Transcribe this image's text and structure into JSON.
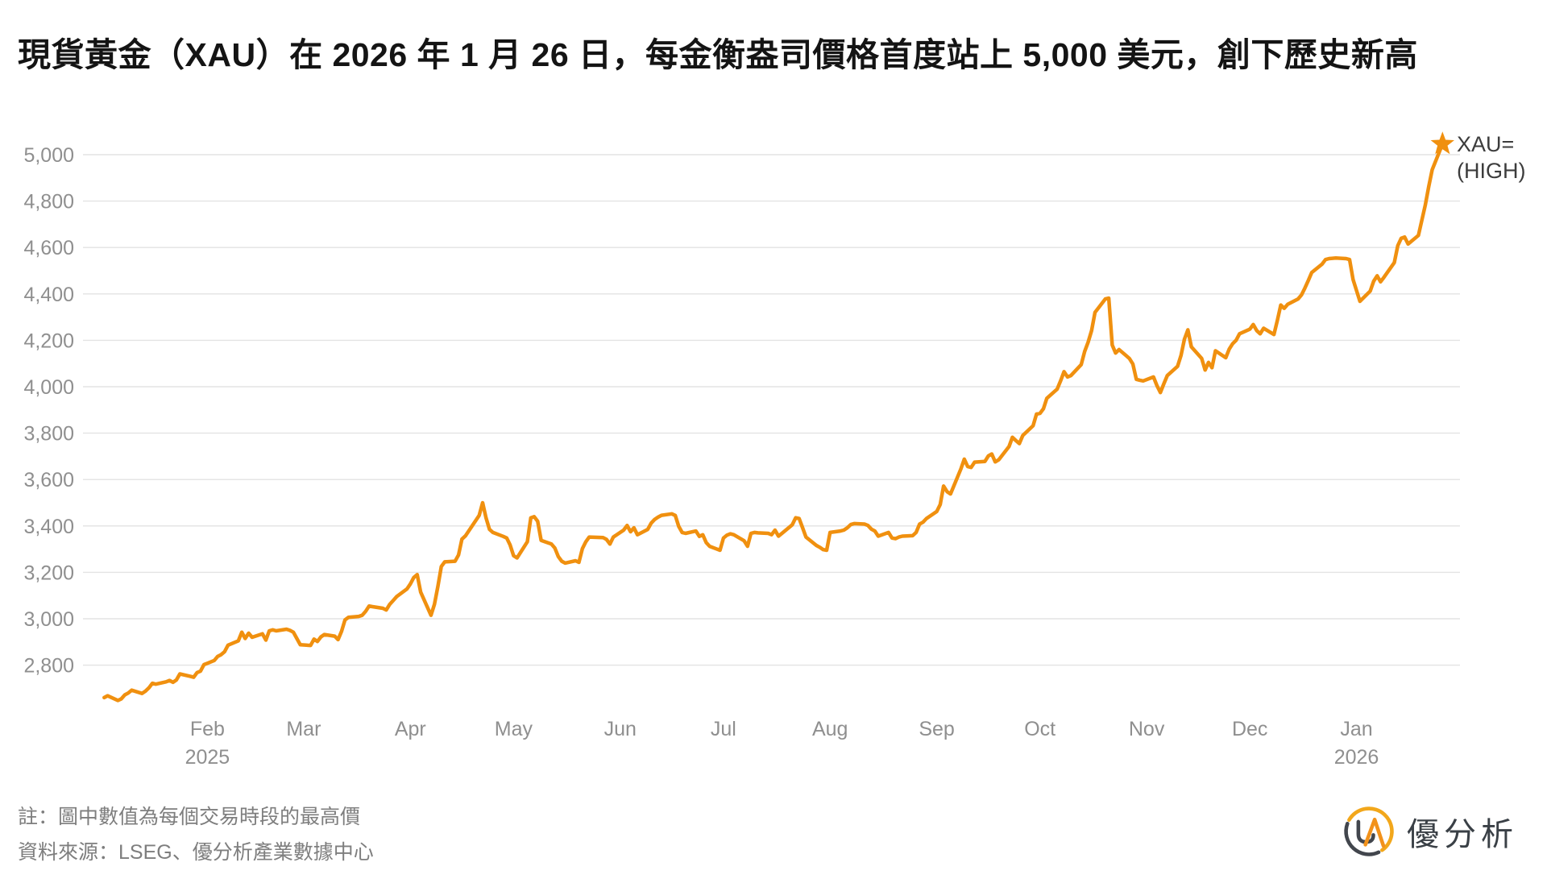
{
  "title": "現貨黃金（XAU）在 2026 年 1 月 26 日，每金衡盎司價格首度站上 5,000 美元，創下歷史新高",
  "annotation": {
    "line1": "XAU=",
    "line2": "(HIGH)"
  },
  "notes": {
    "line1": "註：圖中數值為每個交易時段的最高價",
    "line2": "資料來源：LSEG、優分析產業數據中心"
  },
  "logo": {
    "text": "優分析"
  },
  "colors": {
    "line": "#F0900F",
    "star": "#F0900F",
    "grid": "#E3E3E3",
    "tick_label": "#8F8F8F",
    "title_text": "#141414",
    "note_text": "#7E7E7E",
    "annotation_text": "#3C3C3C",
    "logo_dark": "#42464D",
    "logo_gold": "#F2A71B",
    "logo_orange": "#F2921B",
    "background": "#FFFFFF"
  },
  "chart_data": {
    "type": "line",
    "series_name": "XAU= (HIGH)",
    "title": "現貨黃金（XAU）在 2026 年 1 月 26 日，每金衡盎司價格首度站上 5,000 美元，創下歷史新高",
    "grid": true,
    "legend_position": "end-of-line",
    "y_axis": {
      "min": 2800,
      "max": 5000,
      "step": 200,
      "tick_labels": [
        "2,800",
        "3,000",
        "3,200",
        "3,400",
        "3,600",
        "3,800",
        "4,000",
        "4,200",
        "4,400",
        "4,600",
        "4,800",
        "5,000"
      ]
    },
    "x_axis": {
      "start_date": "2025-01-02",
      "end_date": "2026-01-26",
      "ticks": [
        {
          "label": "Feb",
          "date": "2025-02-01",
          "sublabel": "2025"
        },
        {
          "label": "Mar",
          "date": "2025-03-01",
          "sublabel": ""
        },
        {
          "label": "Apr",
          "date": "2025-04-01",
          "sublabel": ""
        },
        {
          "label": "May",
          "date": "2025-05-01",
          "sublabel": ""
        },
        {
          "label": "Jun",
          "date": "2025-06-01",
          "sublabel": ""
        },
        {
          "label": "Jul",
          "date": "2025-07-01",
          "sublabel": ""
        },
        {
          "label": "Aug",
          "date": "2025-08-01",
          "sublabel": ""
        },
        {
          "label": "Sep",
          "date": "2025-09-01",
          "sublabel": ""
        },
        {
          "label": "Oct",
          "date": "2025-10-01",
          "sublabel": ""
        },
        {
          "label": "Nov",
          "date": "2025-11-01",
          "sublabel": ""
        },
        {
          "label": "Dec",
          "date": "2025-12-01",
          "sublabel": ""
        },
        {
          "label": "Jan",
          "date": "2026-01-01",
          "sublabel": "2026"
        }
      ]
    },
    "high_point": {
      "date": "2026-01-26",
      "value": 5046,
      "marker": "star"
    },
    "points": [
      [
        "2025-01-02",
        2660
      ],
      [
        "2025-01-03",
        2668
      ],
      [
        "2025-01-06",
        2648
      ],
      [
        "2025-01-07",
        2655
      ],
      [
        "2025-01-08",
        2672
      ],
      [
        "2025-01-09",
        2680
      ],
      [
        "2025-01-10",
        2692
      ],
      [
        "2025-01-13",
        2678
      ],
      [
        "2025-01-14",
        2688
      ],
      [
        "2025-01-15",
        2702
      ],
      [
        "2025-01-16",
        2722
      ],
      [
        "2025-01-17",
        2718
      ],
      [
        "2025-01-20",
        2728
      ],
      [
        "2025-01-21",
        2734
      ],
      [
        "2025-01-22",
        2726
      ],
      [
        "2025-01-23",
        2736
      ],
      [
        "2025-01-24",
        2762
      ],
      [
        "2025-01-27",
        2752
      ],
      [
        "2025-01-28",
        2748
      ],
      [
        "2025-01-29",
        2768
      ],
      [
        "2025-01-30",
        2774
      ],
      [
        "2025-01-31",
        2802
      ],
      [
        "2025-02-03",
        2820
      ],
      [
        "2025-02-04",
        2838
      ],
      [
        "2025-02-05",
        2845
      ],
      [
        "2025-02-06",
        2858
      ],
      [
        "2025-02-07",
        2886
      ],
      [
        "2025-02-10",
        2905
      ],
      [
        "2025-02-11",
        2942
      ],
      [
        "2025-02-12",
        2915
      ],
      [
        "2025-02-13",
        2938
      ],
      [
        "2025-02-14",
        2920
      ],
      [
        "2025-02-17",
        2935
      ],
      [
        "2025-02-18",
        2908
      ],
      [
        "2025-02-19",
        2948
      ],
      [
        "2025-02-20",
        2952
      ],
      [
        "2025-02-21",
        2948
      ],
      [
        "2025-02-24",
        2955
      ],
      [
        "2025-02-25",
        2950
      ],
      [
        "2025-02-26",
        2942
      ],
      [
        "2025-02-27",
        2915
      ],
      [
        "2025-02-28",
        2888
      ],
      [
        "2025-03-03",
        2885
      ],
      [
        "2025-03-04",
        2912
      ],
      [
        "2025-03-05",
        2902
      ],
      [
        "2025-03-06",
        2922
      ],
      [
        "2025-03-07",
        2932
      ],
      [
        "2025-03-10",
        2925
      ],
      [
        "2025-03-11",
        2910
      ],
      [
        "2025-03-12",
        2946
      ],
      [
        "2025-03-13",
        2995
      ],
      [
        "2025-03-14",
        3006
      ],
      [
        "2025-03-17",
        3010
      ],
      [
        "2025-03-18",
        3015
      ],
      [
        "2025-03-19",
        3032
      ],
      [
        "2025-03-20",
        3055
      ],
      [
        "2025-03-21",
        3052
      ],
      [
        "2025-03-24",
        3045
      ],
      [
        "2025-03-25",
        3038
      ],
      [
        "2025-03-26",
        3062
      ],
      [
        "2025-03-27",
        3078
      ],
      [
        "2025-03-28",
        3095
      ],
      [
        "2025-03-31",
        3128
      ],
      [
        "2025-04-01",
        3150
      ],
      [
        "2025-04-02",
        3178
      ],
      [
        "2025-04-03",
        3190
      ],
      [
        "2025-04-04",
        3115
      ],
      [
        "2025-04-07",
        3015
      ],
      [
        "2025-04-08",
        3062
      ],
      [
        "2025-04-09",
        3140
      ],
      [
        "2025-04-10",
        3225
      ],
      [
        "2025-04-11",
        3245
      ],
      [
        "2025-04-14",
        3248
      ],
      [
        "2025-04-15",
        3275
      ],
      [
        "2025-04-16",
        3343
      ],
      [
        "2025-04-17",
        3357
      ],
      [
        "2025-04-21",
        3445
      ],
      [
        "2025-04-22",
        3500
      ],
      [
        "2025-04-23",
        3435
      ],
      [
        "2025-04-24",
        3385
      ],
      [
        "2025-04-25",
        3372
      ],
      [
        "2025-04-28",
        3355
      ],
      [
        "2025-04-29",
        3348
      ],
      [
        "2025-04-30",
        3318
      ],
      [
        "2025-05-01",
        3272
      ],
      [
        "2025-05-02",
        3262
      ],
      [
        "2025-05-05",
        3332
      ],
      [
        "2025-05-06",
        3435
      ],
      [
        "2025-05-07",
        3440
      ],
      [
        "2025-05-08",
        3420
      ],
      [
        "2025-05-09",
        3338
      ],
      [
        "2025-05-12",
        3322
      ],
      [
        "2025-05-13",
        3305
      ],
      [
        "2025-05-14",
        3268
      ],
      [
        "2025-05-15",
        3248
      ],
      [
        "2025-05-16",
        3240
      ],
      [
        "2025-05-19",
        3250
      ],
      [
        "2025-05-20",
        3243
      ],
      [
        "2025-05-21",
        3302
      ],
      [
        "2025-05-22",
        3332
      ],
      [
        "2025-05-23",
        3352
      ],
      [
        "2025-05-27",
        3350
      ],
      [
        "2025-05-28",
        3342
      ],
      [
        "2025-05-29",
        3322
      ],
      [
        "2025-05-30",
        3352
      ],
      [
        "2025-06-02",
        3382
      ],
      [
        "2025-06-03",
        3402
      ],
      [
        "2025-06-04",
        3375
      ],
      [
        "2025-06-05",
        3392
      ],
      [
        "2025-06-06",
        3362
      ],
      [
        "2025-06-09",
        3385
      ],
      [
        "2025-06-10",
        3412
      ],
      [
        "2025-06-11",
        3428
      ],
      [
        "2025-06-12",
        3438
      ],
      [
        "2025-06-13",
        3446
      ],
      [
        "2025-06-16",
        3452
      ],
      [
        "2025-06-17",
        3445
      ],
      [
        "2025-06-18",
        3398
      ],
      [
        "2025-06-19",
        3372
      ],
      [
        "2025-06-20",
        3368
      ],
      [
        "2025-06-23",
        3378
      ],
      [
        "2025-06-24",
        3355
      ],
      [
        "2025-06-25",
        3362
      ],
      [
        "2025-06-26",
        3328
      ],
      [
        "2025-06-27",
        3312
      ],
      [
        "2025-06-30",
        3295
      ],
      [
        "2025-07-01",
        3348
      ],
      [
        "2025-07-02",
        3360
      ],
      [
        "2025-07-03",
        3366
      ],
      [
        "2025-07-04",
        3362
      ],
      [
        "2025-07-07",
        3336
      ],
      [
        "2025-07-08",
        3312
      ],
      [
        "2025-07-09",
        3368
      ],
      [
        "2025-07-10",
        3372
      ],
      [
        "2025-07-11",
        3370
      ],
      [
        "2025-07-14",
        3368
      ],
      [
        "2025-07-15",
        3362
      ],
      [
        "2025-07-16",
        3382
      ],
      [
        "2025-07-17",
        3356
      ],
      [
        "2025-07-18",
        3368
      ],
      [
        "2025-07-21",
        3405
      ],
      [
        "2025-07-22",
        3435
      ],
      [
        "2025-07-23",
        3432
      ],
      [
        "2025-07-24",
        3392
      ],
      [
        "2025-07-25",
        3352
      ],
      [
        "2025-07-28",
        3316
      ],
      [
        "2025-07-29",
        3308
      ],
      [
        "2025-07-30",
        3298
      ],
      [
        "2025-07-31",
        3295
      ],
      [
        "2025-08-01",
        3372
      ],
      [
        "2025-08-04",
        3378
      ],
      [
        "2025-08-05",
        3382
      ],
      [
        "2025-08-06",
        3392
      ],
      [
        "2025-08-07",
        3406
      ],
      [
        "2025-08-08",
        3410
      ],
      [
        "2025-08-11",
        3408
      ],
      [
        "2025-08-12",
        3402
      ],
      [
        "2025-08-13",
        3386
      ],
      [
        "2025-08-14",
        3378
      ],
      [
        "2025-08-15",
        3356
      ],
      [
        "2025-08-18",
        3372
      ],
      [
        "2025-08-19",
        3348
      ],
      [
        "2025-08-20",
        3345
      ],
      [
        "2025-08-21",
        3352
      ],
      [
        "2025-08-22",
        3356
      ],
      [
        "2025-08-25",
        3358
      ],
      [
        "2025-08-26",
        3372
      ],
      [
        "2025-08-27",
        3408
      ],
      [
        "2025-08-28",
        3416
      ],
      [
        "2025-08-29",
        3432
      ],
      [
        "2025-09-01",
        3462
      ],
      [
        "2025-09-02",
        3492
      ],
      [
        "2025-09-03",
        3572
      ],
      [
        "2025-09-04",
        3548
      ],
      [
        "2025-09-05",
        3538
      ],
      [
        "2025-09-08",
        3645
      ],
      [
        "2025-09-09",
        3688
      ],
      [
        "2025-09-10",
        3656
      ],
      [
        "2025-09-11",
        3652
      ],
      [
        "2025-09-12",
        3675
      ],
      [
        "2025-09-15",
        3678
      ],
      [
        "2025-09-16",
        3702
      ],
      [
        "2025-09-17",
        3710
      ],
      [
        "2025-09-18",
        3676
      ],
      [
        "2025-09-19",
        3685
      ],
      [
        "2025-09-22",
        3742
      ],
      [
        "2025-09-23",
        3782
      ],
      [
        "2025-09-24",
        3768
      ],
      [
        "2025-09-25",
        3755
      ],
      [
        "2025-09-26",
        3790
      ],
      [
        "2025-09-29",
        3832
      ],
      [
        "2025-09-30",
        3882
      ],
      [
        "2025-10-01",
        3885
      ],
      [
        "2025-10-02",
        3905
      ],
      [
        "2025-10-03",
        3950
      ],
      [
        "2025-10-06",
        3990
      ],
      [
        "2025-10-07",
        4025
      ],
      [
        "2025-10-08",
        4065
      ],
      [
        "2025-10-09",
        4042
      ],
      [
        "2025-10-10",
        4048
      ],
      [
        "2025-10-13",
        4095
      ],
      [
        "2025-10-14",
        4152
      ],
      [
        "2025-10-15",
        4192
      ],
      [
        "2025-10-16",
        4242
      ],
      [
        "2025-10-17",
        4320
      ],
      [
        "2025-10-20",
        4378
      ],
      [
        "2025-10-21",
        4382
      ],
      [
        "2025-10-22",
        4180
      ],
      [
        "2025-10-23",
        4145
      ],
      [
        "2025-10-24",
        4160
      ],
      [
        "2025-10-27",
        4122
      ],
      [
        "2025-10-28",
        4098
      ],
      [
        "2025-10-29",
        4032
      ],
      [
        "2025-10-30",
        4028
      ],
      [
        "2025-10-31",
        4025
      ],
      [
        "2025-11-03",
        4042
      ],
      [
        "2025-11-04",
        4005
      ],
      [
        "2025-11-05",
        3975
      ],
      [
        "2025-11-06",
        4012
      ],
      [
        "2025-11-07",
        4048
      ],
      [
        "2025-11-10",
        4088
      ],
      [
        "2025-11-11",
        4135
      ],
      [
        "2025-11-12",
        4205
      ],
      [
        "2025-11-13",
        4245
      ],
      [
        "2025-11-14",
        4172
      ],
      [
        "2025-11-17",
        4122
      ],
      [
        "2025-11-18",
        4072
      ],
      [
        "2025-11-19",
        4105
      ],
      [
        "2025-11-20",
        4082
      ],
      [
        "2025-11-21",
        4155
      ],
      [
        "2025-11-24",
        4125
      ],
      [
        "2025-11-25",
        4162
      ],
      [
        "2025-11-26",
        4185
      ],
      [
        "2025-11-27",
        4200
      ],
      [
        "2025-11-28",
        4228
      ],
      [
        "2025-12-01",
        4248
      ],
      [
        "2025-12-02",
        4268
      ],
      [
        "2025-12-03",
        4242
      ],
      [
        "2025-12-04",
        4228
      ],
      [
        "2025-12-05",
        4252
      ],
      [
        "2025-12-08",
        4225
      ],
      [
        "2025-12-09",
        4285
      ],
      [
        "2025-12-10",
        4352
      ],
      [
        "2025-12-11",
        4338
      ],
      [
        "2025-12-12",
        4355
      ],
      [
        "2025-12-15",
        4378
      ],
      [
        "2025-12-16",
        4395
      ],
      [
        "2025-12-17",
        4425
      ],
      [
        "2025-12-18",
        4458
      ],
      [
        "2025-12-19",
        4492
      ],
      [
        "2025-12-22",
        4528
      ],
      [
        "2025-12-23",
        4548
      ],
      [
        "2025-12-24",
        4552
      ],
      [
        "2025-12-26",
        4555
      ],
      [
        "2025-12-29",
        4552
      ],
      [
        "2025-12-30",
        4548
      ],
      [
        "2025-12-31",
        4462
      ],
      [
        "2026-01-02",
        4368
      ],
      [
        "2026-01-05",
        4412
      ],
      [
        "2026-01-06",
        4455
      ],
      [
        "2026-01-07",
        4478
      ],
      [
        "2026-01-08",
        4452
      ],
      [
        "2026-01-09",
        4472
      ],
      [
        "2026-01-12",
        4535
      ],
      [
        "2026-01-13",
        4608
      ],
      [
        "2026-01-14",
        4640
      ],
      [
        "2026-01-15",
        4645
      ],
      [
        "2026-01-16",
        4615
      ],
      [
        "2026-01-19",
        4652
      ],
      [
        "2026-01-20",
        4718
      ],
      [
        "2026-01-21",
        4782
      ],
      [
        "2026-01-22",
        4862
      ],
      [
        "2026-01-23",
        4935
      ],
      [
        "2026-01-26",
        5046
      ]
    ]
  }
}
